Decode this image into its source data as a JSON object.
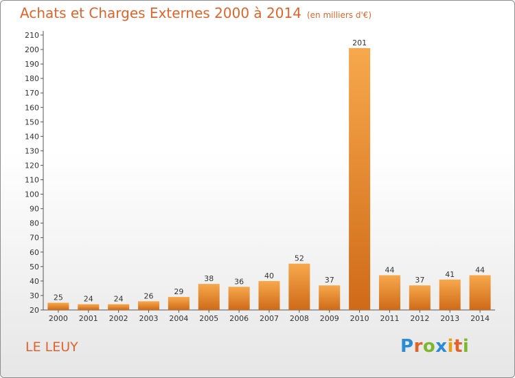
{
  "title": "Achats et Charges Externes 2000 à 2014",
  "unit_note": "(en milliers d'€)",
  "commune": "LE LEUY",
  "logo_text": "Proxiti",
  "colors": {
    "title": "#e2632a",
    "bar_light": "#f7a84c",
    "bar_dark": "#cf6a18",
    "logo": [
      "#2a8bd6",
      "#e2632a",
      "#7cb82f",
      "#2a8bd6",
      "#e3a21a",
      "#e2632a",
      "#7cb82f"
    ]
  },
  "chart_data": {
    "type": "bar",
    "title": "Achats et Charges Externes 2000 à 2014",
    "subtitle": "(en milliers d'€)",
    "categories": [
      "2000",
      "2001",
      "2002",
      "2003",
      "2004",
      "2005",
      "2006",
      "2007",
      "2008",
      "2009",
      "2010",
      "2011",
      "2012",
      "2013",
      "2014"
    ],
    "values": [
      25,
      24,
      24,
      26,
      29,
      38,
      36,
      40,
      52,
      37,
      201,
      44,
      37,
      41,
      44
    ],
    "ylim": [
      20,
      210
    ],
    "yticks": [
      20,
      30,
      40,
      50,
      60,
      70,
      80,
      90,
      100,
      110,
      120,
      130,
      140,
      150,
      160,
      170,
      180,
      190,
      200,
      210
    ],
    "grid": false,
    "legend": "none"
  }
}
